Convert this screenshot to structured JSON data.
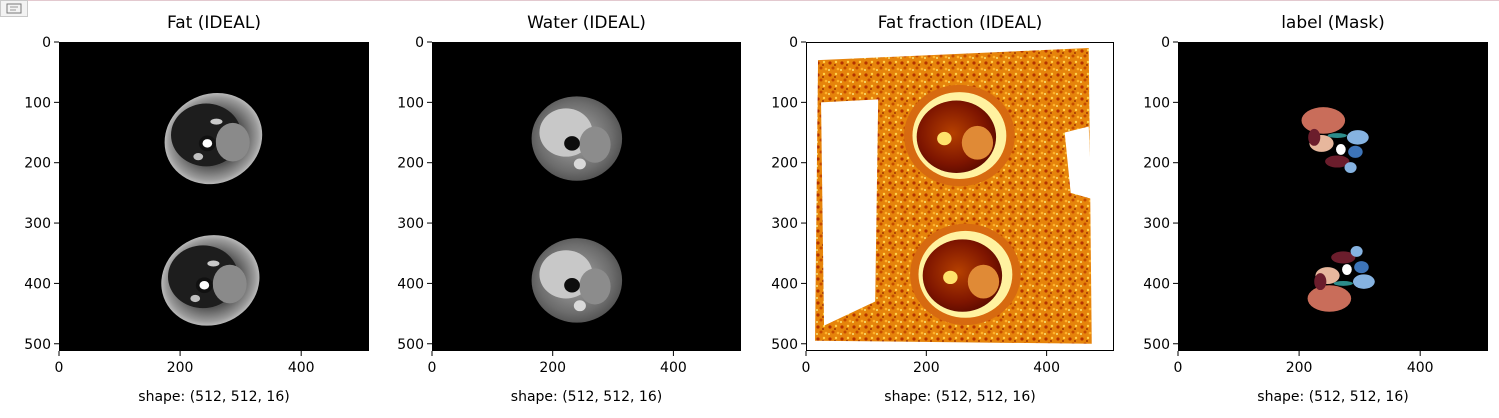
{
  "notebook": {
    "output_icon": "expand-output-icon"
  },
  "chart_data": [
    {
      "type": "heatmap",
      "title": "Fat (IDEAL)",
      "colormap": "gray",
      "xlabel": "shape: (512, 512, 16)",
      "xlim": [
        0,
        511
      ],
      "ylim": [
        511,
        0
      ],
      "xticks": [
        0,
        200,
        400
      ],
      "yticks": [
        0,
        100,
        200,
        300,
        400,
        500
      ]
    },
    {
      "type": "heatmap",
      "title": "Water (IDEAL)",
      "colormap": "gray",
      "xlabel": "shape: (512, 512, 16)",
      "xlim": [
        0,
        511
      ],
      "ylim": [
        511,
        0
      ],
      "xticks": [
        0,
        200,
        400
      ],
      "yticks": [
        0,
        100,
        200,
        300,
        400,
        500
      ]
    },
    {
      "type": "heatmap",
      "title": "Fat fraction (IDEAL)",
      "colormap": "afmhot",
      "xlabel": "shape: (512, 512, 16)",
      "xlim": [
        0,
        511
      ],
      "ylim": [
        511,
        0
      ],
      "xticks": [
        0,
        200,
        400
      ],
      "yticks": [
        0,
        100,
        200,
        300,
        400,
        500
      ]
    },
    {
      "type": "heatmap",
      "title": "label (Mask)",
      "colormap": "label",
      "xlabel": "shape: (512, 512, 16)",
      "xlim": [
        0,
        511
      ],
      "ylim": [
        511,
        0
      ],
      "xticks": [
        0,
        200,
        400
      ],
      "yticks": [
        0,
        100,
        200,
        300,
        400,
        500
      ]
    }
  ],
  "colors": {
    "label_palette": [
      "#c96d5a",
      "#e7b79d",
      "#6b1d2c",
      "#86b3e1",
      "#3d74b8",
      "#2c8c8b",
      "#ffffff"
    ],
    "fatfraction_palette": [
      "#7a1200",
      "#c83a00",
      "#ee8a00",
      "#ffd64a",
      "#fff3a0"
    ]
  }
}
